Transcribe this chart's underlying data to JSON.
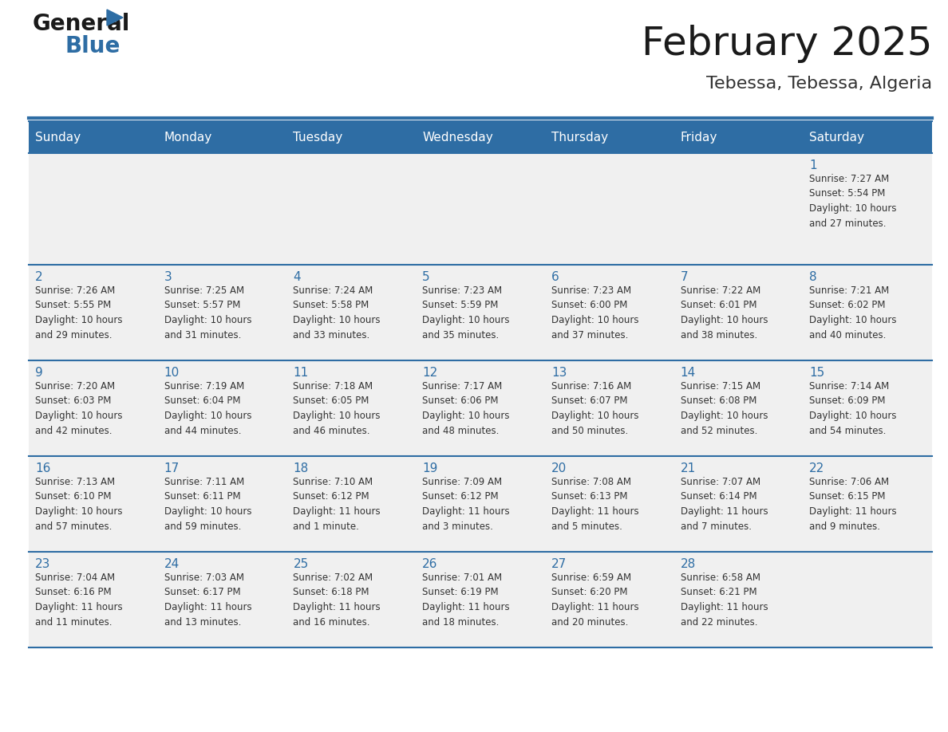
{
  "title": "February 2025",
  "subtitle": "Tebessa, Tebessa, Algeria",
  "header_bg": "#2E6DA4",
  "header_text": "#FFFFFF",
  "cell_bg": "#F0F0F0",
  "day_headers": [
    "Sunday",
    "Monday",
    "Tuesday",
    "Wednesday",
    "Thursday",
    "Friday",
    "Saturday"
  ],
  "title_color": "#1a1a1a",
  "subtitle_color": "#333333",
  "line_color": "#2E6DA4",
  "date_color": "#2E6DA4",
  "info_color": "#333333",
  "logo_general_color": "#1a1a1a",
  "logo_blue_color": "#2E6DA4",
  "logo_triangle_color": "#2E6DA4",
  "weeks": [
    [
      {
        "day": null,
        "info": null
      },
      {
        "day": null,
        "info": null
      },
      {
        "day": null,
        "info": null
      },
      {
        "day": null,
        "info": null
      },
      {
        "day": null,
        "info": null
      },
      {
        "day": null,
        "info": null
      },
      {
        "day": 1,
        "info": "Sunrise: 7:27 AM\nSunset: 5:54 PM\nDaylight: 10 hours\nand 27 minutes."
      }
    ],
    [
      {
        "day": 2,
        "info": "Sunrise: 7:26 AM\nSunset: 5:55 PM\nDaylight: 10 hours\nand 29 minutes."
      },
      {
        "day": 3,
        "info": "Sunrise: 7:25 AM\nSunset: 5:57 PM\nDaylight: 10 hours\nand 31 minutes."
      },
      {
        "day": 4,
        "info": "Sunrise: 7:24 AM\nSunset: 5:58 PM\nDaylight: 10 hours\nand 33 minutes."
      },
      {
        "day": 5,
        "info": "Sunrise: 7:23 AM\nSunset: 5:59 PM\nDaylight: 10 hours\nand 35 minutes."
      },
      {
        "day": 6,
        "info": "Sunrise: 7:23 AM\nSunset: 6:00 PM\nDaylight: 10 hours\nand 37 minutes."
      },
      {
        "day": 7,
        "info": "Sunrise: 7:22 AM\nSunset: 6:01 PM\nDaylight: 10 hours\nand 38 minutes."
      },
      {
        "day": 8,
        "info": "Sunrise: 7:21 AM\nSunset: 6:02 PM\nDaylight: 10 hours\nand 40 minutes."
      }
    ],
    [
      {
        "day": 9,
        "info": "Sunrise: 7:20 AM\nSunset: 6:03 PM\nDaylight: 10 hours\nand 42 minutes."
      },
      {
        "day": 10,
        "info": "Sunrise: 7:19 AM\nSunset: 6:04 PM\nDaylight: 10 hours\nand 44 minutes."
      },
      {
        "day": 11,
        "info": "Sunrise: 7:18 AM\nSunset: 6:05 PM\nDaylight: 10 hours\nand 46 minutes."
      },
      {
        "day": 12,
        "info": "Sunrise: 7:17 AM\nSunset: 6:06 PM\nDaylight: 10 hours\nand 48 minutes."
      },
      {
        "day": 13,
        "info": "Sunrise: 7:16 AM\nSunset: 6:07 PM\nDaylight: 10 hours\nand 50 minutes."
      },
      {
        "day": 14,
        "info": "Sunrise: 7:15 AM\nSunset: 6:08 PM\nDaylight: 10 hours\nand 52 minutes."
      },
      {
        "day": 15,
        "info": "Sunrise: 7:14 AM\nSunset: 6:09 PM\nDaylight: 10 hours\nand 54 minutes."
      }
    ],
    [
      {
        "day": 16,
        "info": "Sunrise: 7:13 AM\nSunset: 6:10 PM\nDaylight: 10 hours\nand 57 minutes."
      },
      {
        "day": 17,
        "info": "Sunrise: 7:11 AM\nSunset: 6:11 PM\nDaylight: 10 hours\nand 59 minutes."
      },
      {
        "day": 18,
        "info": "Sunrise: 7:10 AM\nSunset: 6:12 PM\nDaylight: 11 hours\nand 1 minute."
      },
      {
        "day": 19,
        "info": "Sunrise: 7:09 AM\nSunset: 6:12 PM\nDaylight: 11 hours\nand 3 minutes."
      },
      {
        "day": 20,
        "info": "Sunrise: 7:08 AM\nSunset: 6:13 PM\nDaylight: 11 hours\nand 5 minutes."
      },
      {
        "day": 21,
        "info": "Sunrise: 7:07 AM\nSunset: 6:14 PM\nDaylight: 11 hours\nand 7 minutes."
      },
      {
        "day": 22,
        "info": "Sunrise: 7:06 AM\nSunset: 6:15 PM\nDaylight: 11 hours\nand 9 minutes."
      }
    ],
    [
      {
        "day": 23,
        "info": "Sunrise: 7:04 AM\nSunset: 6:16 PM\nDaylight: 11 hours\nand 11 minutes."
      },
      {
        "day": 24,
        "info": "Sunrise: 7:03 AM\nSunset: 6:17 PM\nDaylight: 11 hours\nand 13 minutes."
      },
      {
        "day": 25,
        "info": "Sunrise: 7:02 AM\nSunset: 6:18 PM\nDaylight: 11 hours\nand 16 minutes."
      },
      {
        "day": 26,
        "info": "Sunrise: 7:01 AM\nSunset: 6:19 PM\nDaylight: 11 hours\nand 18 minutes."
      },
      {
        "day": 27,
        "info": "Sunrise: 6:59 AM\nSunset: 6:20 PM\nDaylight: 11 hours\nand 20 minutes."
      },
      {
        "day": 28,
        "info": "Sunrise: 6:58 AM\nSunset: 6:21 PM\nDaylight: 11 hours\nand 22 minutes."
      },
      {
        "day": null,
        "info": null
      }
    ]
  ]
}
